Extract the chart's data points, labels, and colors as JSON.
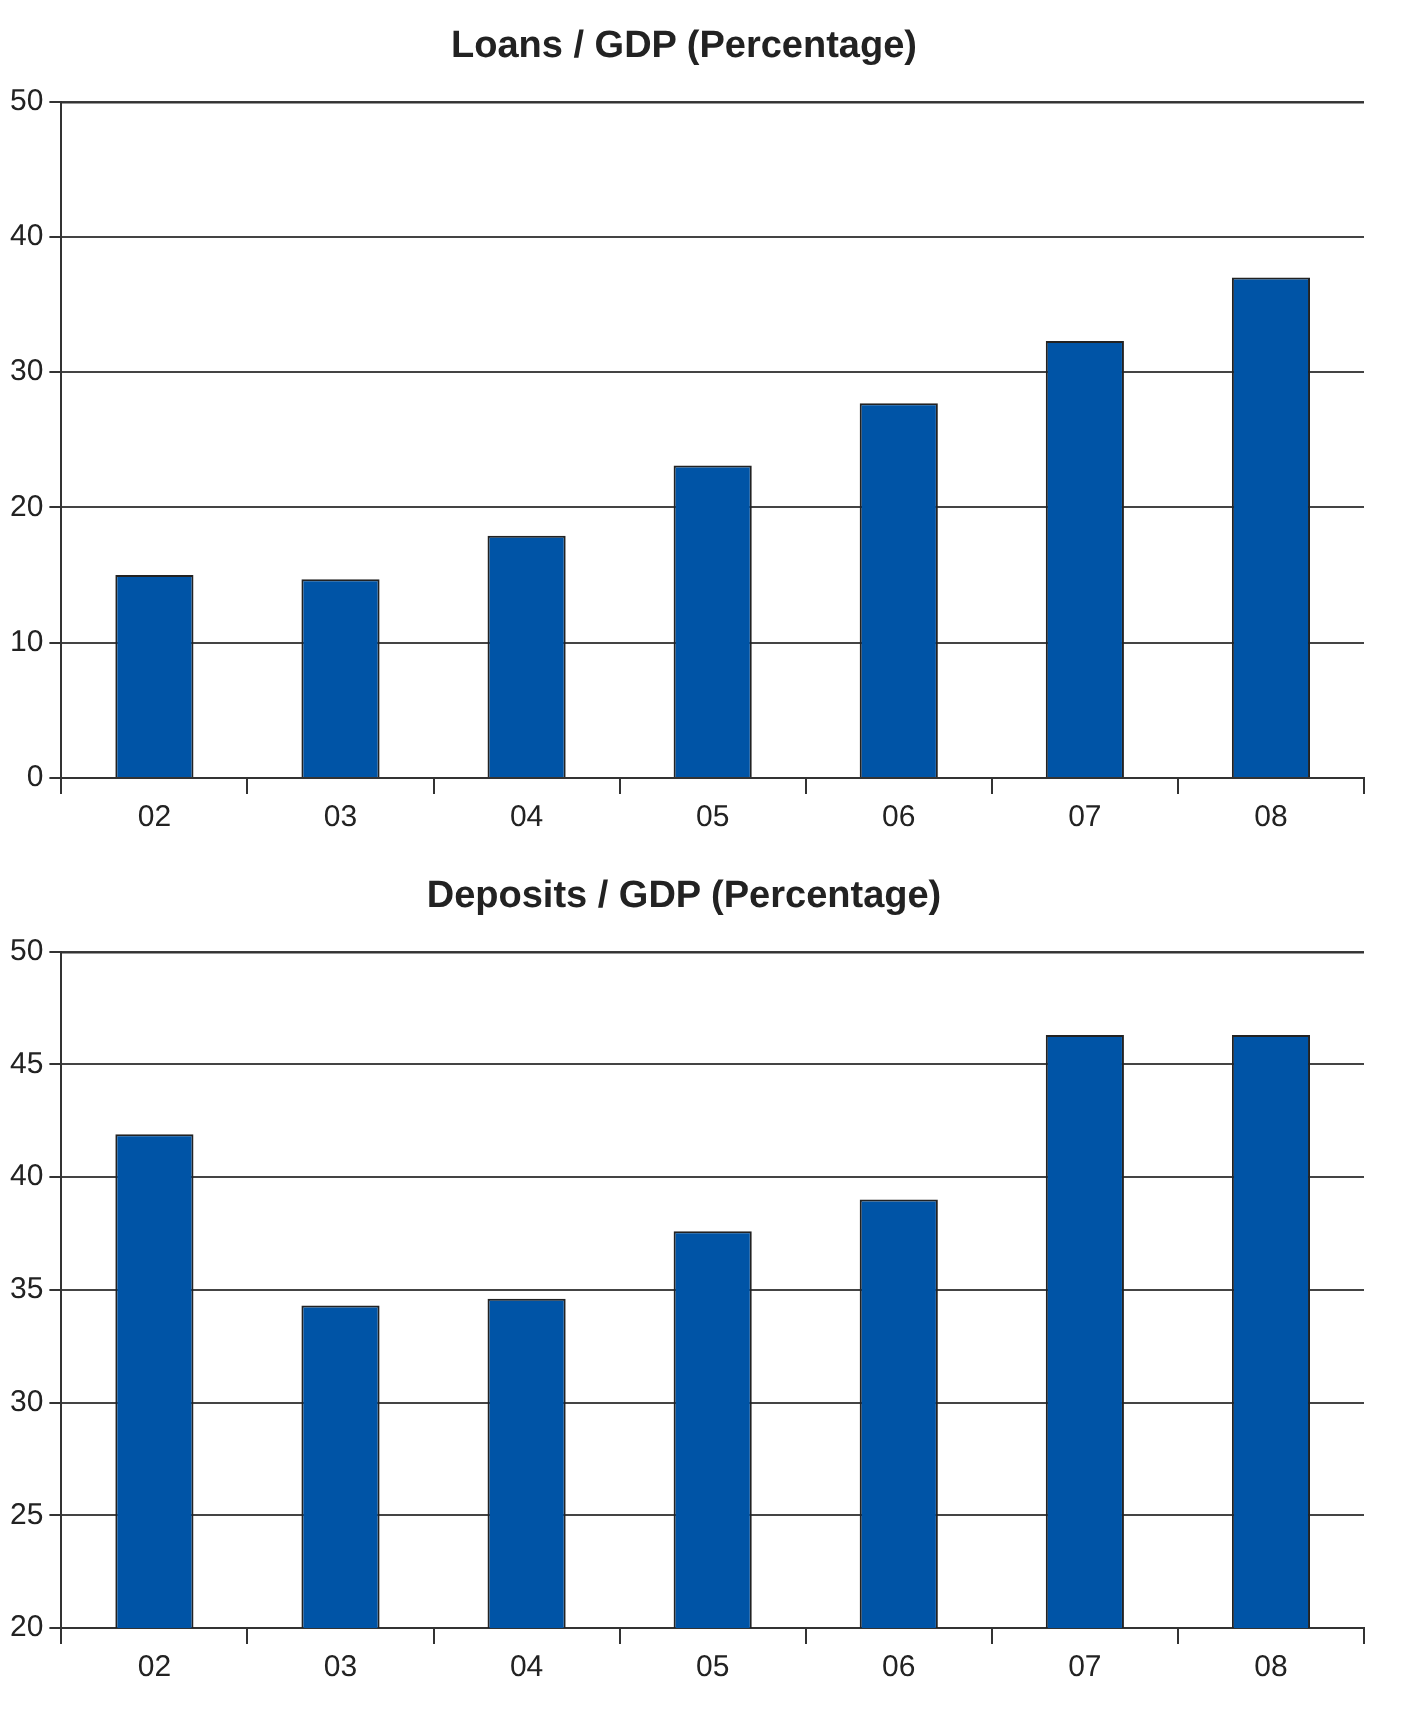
{
  "chart_data": [
    {
      "type": "bar",
      "title": "Loans / GDP (Percentage)",
      "categories": [
        "02",
        "03",
        "04",
        "05",
        "06",
        "07",
        "08"
      ],
      "values": [
        15.0,
        14.7,
        17.9,
        23.1,
        27.7,
        32.3,
        37.0
      ],
      "color": "#0054a6",
      "ylim": [
        0,
        50
      ],
      "yticks": [
        0,
        10,
        20,
        30,
        40,
        50
      ],
      "grid": "y"
    },
    {
      "type": "bar",
      "title": "Deposits / GDP (Percentage)",
      "categories": [
        "02",
        "03",
        "04",
        "05",
        "06",
        "07",
        "08"
      ],
      "values": [
        41.9,
        34.3,
        34.6,
        37.6,
        39.0,
        46.3,
        46.3
      ],
      "color": "#0054a6",
      "ylim": [
        20,
        50
      ],
      "yticks": [
        20,
        25,
        30,
        35,
        40,
        45,
        50
      ],
      "grid": "y"
    }
  ]
}
